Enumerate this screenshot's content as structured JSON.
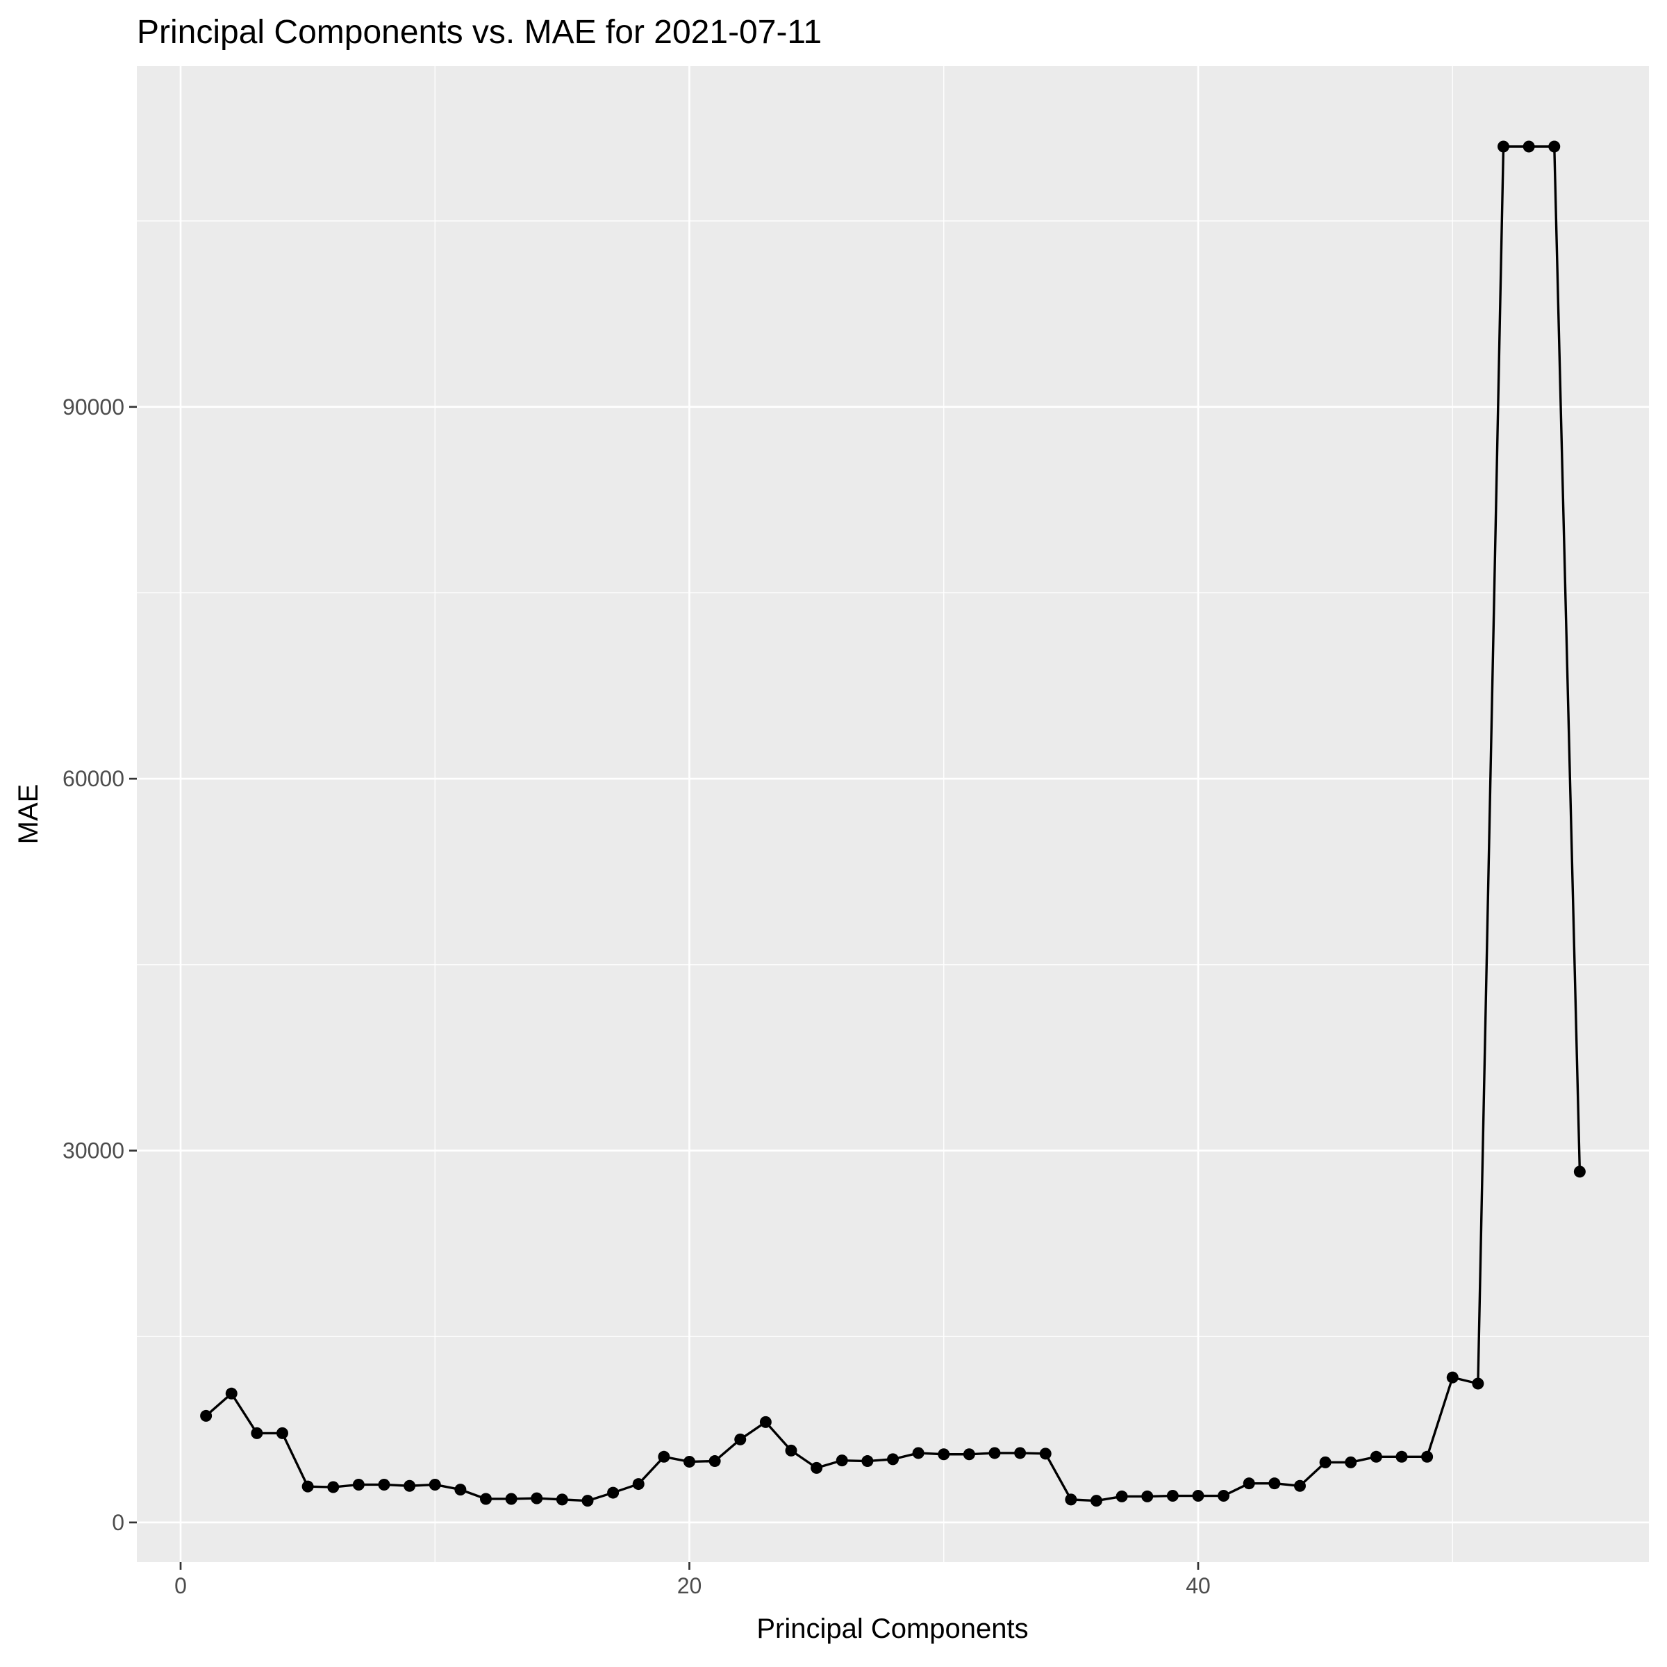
{
  "chart_data": {
    "type": "line",
    "title": "Principal Components vs. MAE for 2021-07-11",
    "xlabel": "Principal Components",
    "ylabel": "MAE",
    "xlim": [
      -1.72,
      57.72
    ],
    "ylim": [
      -3200,
      117500
    ],
    "x_ticks": [
      0,
      20,
      40
    ],
    "y_ticks": [
      0,
      30000,
      60000,
      90000
    ],
    "grid": true,
    "legend": "none",
    "colors": {
      "panel_background": "#ebebeb",
      "grid_major": "#ffffff",
      "line": "#000000",
      "points": "#000000"
    },
    "series": [
      {
        "x": [
          1,
          2,
          3,
          4,
          5,
          6,
          7,
          8,
          9,
          10,
          11,
          12,
          13,
          14,
          15,
          16,
          17,
          18,
          19,
          20,
          21,
          22,
          23,
          24,
          25,
          26,
          27,
          28,
          29,
          30,
          31,
          32,
          33,
          34,
          35,
          36,
          37,
          38,
          39,
          40,
          41,
          42,
          43,
          44,
          45,
          46,
          47,
          48,
          49,
          50,
          51,
          52,
          53,
          54,
          55
        ],
        "values": [
          8600,
          10400,
          7200,
          7200,
          2900,
          2850,
          3050,
          3050,
          2950,
          3050,
          2650,
          1900,
          1900,
          1950,
          1850,
          1750,
          2400,
          3100,
          5300,
          4900,
          4950,
          6700,
          8100,
          5800,
          4400,
          5000,
          4950,
          5100,
          5600,
          5500,
          5500,
          5600,
          5600,
          5550,
          1850,
          1750,
          2100,
          2100,
          2150,
          2150,
          2150,
          3150,
          3150,
          2950,
          4850,
          4850,
          5300,
          5300,
          5300,
          11700,
          11200,
          111000,
          111000,
          111000,
          28300
        ]
      }
    ]
  }
}
